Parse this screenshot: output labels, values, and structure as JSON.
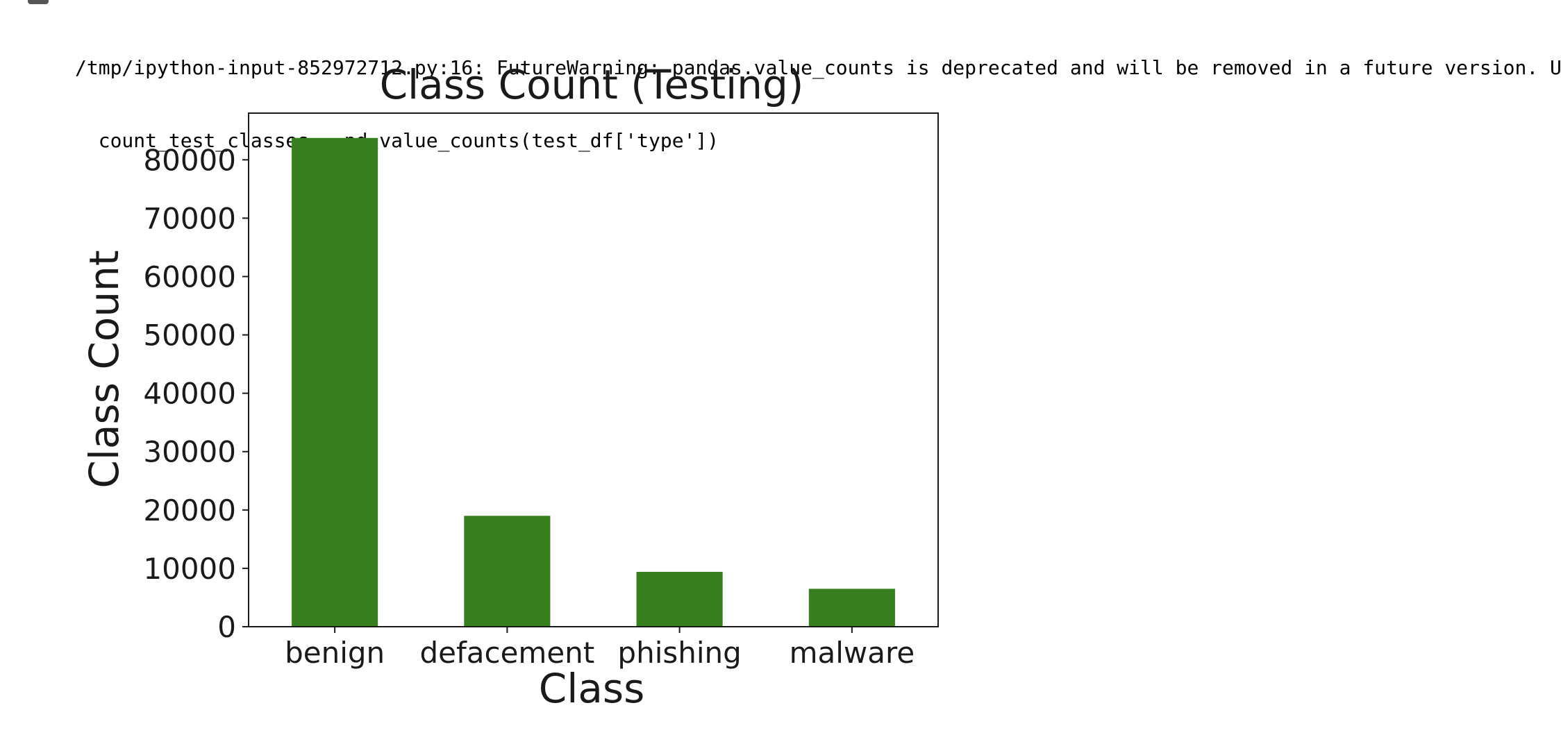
{
  "stderr": {
    "warning_line": "/tmp/ipython-input-852972712.py:16: FutureWarning: pandas.value_counts is deprecated and will be removed in a future version. U",
    "code_line": "  count_test_classes = pd.value_counts(test_df['type'])"
  },
  "chart_data": {
    "type": "bar",
    "title": "Class Count (Testing)",
    "xlabel": "Class",
    "ylabel": "Class Count",
    "categories": [
      "benign",
      "defacement",
      "phishing",
      "malware"
    ],
    "values": [
      83750,
      19000,
      9400,
      6500
    ],
    "ylim": [
      0,
      88000
    ],
    "yticks": [
      0,
      10000,
      20000,
      30000,
      40000,
      50000,
      60000,
      70000,
      80000
    ],
    "ytick_labels": [
      "0",
      "10000",
      "20000",
      "30000",
      "40000",
      "50000",
      "60000",
      "70000",
      "80000"
    ],
    "bar_color": "#38801f",
    "grid": false,
    "legend": "none"
  }
}
